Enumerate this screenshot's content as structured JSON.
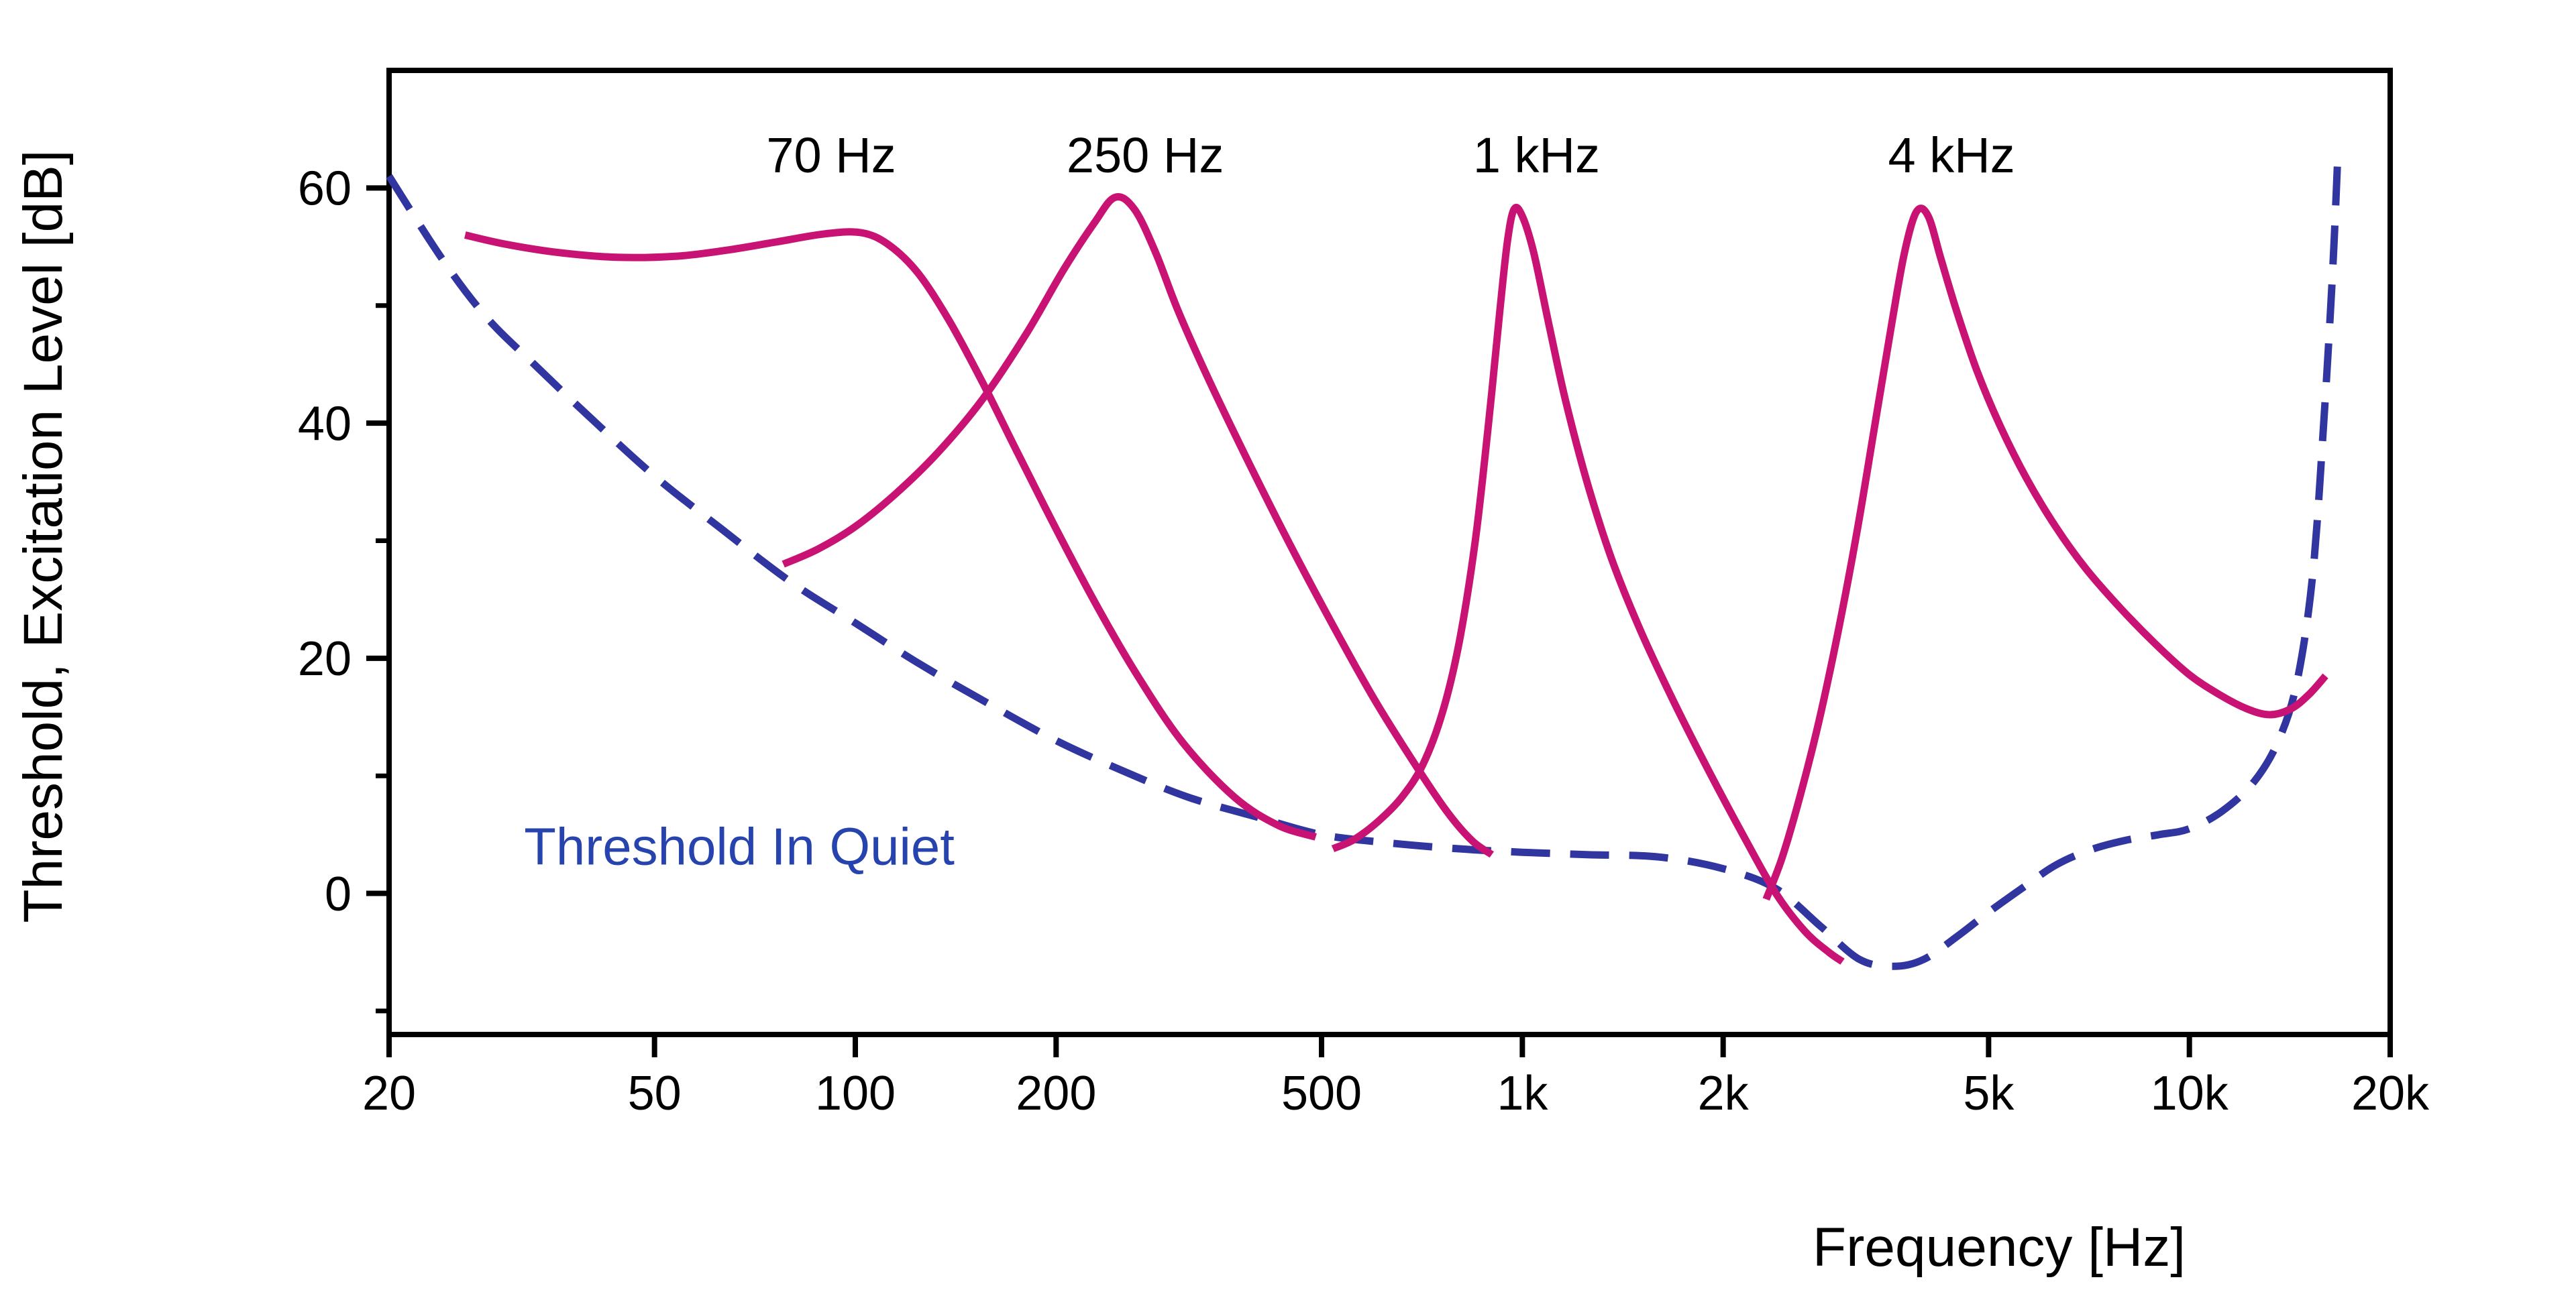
{
  "chart_data": {
    "type": "line",
    "title": "",
    "xlabel": "Frequency [Hz]",
    "ylabel": "Threshold, Excitation Level [dB]",
    "x_scale": "log10",
    "xlim": [
      20,
      20000
    ],
    "ylim": [
      -12,
      70
    ],
    "grid": false,
    "legend_position": "none",
    "x_ticks": [
      {
        "value": 20,
        "label": "20"
      },
      {
        "value": 50,
        "label": "50"
      },
      {
        "value": 100,
        "label": "100"
      },
      {
        "value": 200,
        "label": "200"
      },
      {
        "value": 500,
        "label": "500"
      },
      {
        "value": 1000,
        "label": "1k"
      },
      {
        "value": 2000,
        "label": "2k"
      },
      {
        "value": 5000,
        "label": "5k"
      },
      {
        "value": 10000,
        "label": "10k"
      },
      {
        "value": 20000,
        "label": "20k"
      }
    ],
    "y_ticks": [
      {
        "value": 0,
        "label": "0"
      },
      {
        "value": 20,
        "label": "20"
      },
      {
        "value": 40,
        "label": "40"
      },
      {
        "value": 60,
        "label": "60"
      }
    ],
    "y_minor_ticks": [
      -10,
      10,
      30,
      50
    ],
    "colors": {
      "excitation": "#C81374",
      "threshold": "#3035A0",
      "axis": "#000000",
      "text": "#000000"
    },
    "annotations": [
      {
        "id": "label-70hz",
        "text": "70 Hz",
        "x_hz": 92,
        "y_db": 62.8,
        "color": "#000000"
      },
      {
        "id": "label-250hz",
        "text": "250 Hz",
        "x_hz": 272,
        "y_db": 62.8,
        "color": "#000000"
      },
      {
        "id": "label-1khz",
        "text": "1 kHz",
        "x_hz": 1050,
        "y_db": 62.8,
        "color": "#000000"
      },
      {
        "id": "label-4khz",
        "text": "4 kHz",
        "x_hz": 4400,
        "y_db": 62.8,
        "color": "#000000"
      },
      {
        "id": "label-threshold-in-quiet",
        "text": "Threshold In Quiet",
        "x_hz": 67,
        "y_db": 4.0,
        "color": "#2743AE"
      }
    ],
    "series": [
      {
        "name": "threshold-in-quiet",
        "legend": "Threshold In Quiet",
        "style": "dashed",
        "color_key": "threshold",
        "points": [
          [
            20,
            61
          ],
          [
            24,
            54
          ],
          [
            28,
            49
          ],
          [
            33,
            45
          ],
          [
            40,
            40.5
          ],
          [
            50,
            35.5
          ],
          [
            63,
            31
          ],
          [
            80,
            26.5
          ],
          [
            100,
            23
          ],
          [
            125,
            19.5
          ],
          [
            160,
            16
          ],
          [
            200,
            13
          ],
          [
            250,
            10.5
          ],
          [
            315,
            8.2
          ],
          [
            400,
            6.5
          ],
          [
            500,
            5.0
          ],
          [
            630,
            4.3
          ],
          [
            800,
            3.8
          ],
          [
            1000,
            3.5
          ],
          [
            1250,
            3.3
          ],
          [
            1600,
            3.1
          ],
          [
            2000,
            2.1
          ],
          [
            2400,
            0.4
          ],
          [
            2800,
            -2.8
          ],
          [
            3200,
            -5.6
          ],
          [
            3600,
            -6.2
          ],
          [
            4000,
            -5.6
          ],
          [
            4500,
            -3.6
          ],
          [
            5000,
            -1.6
          ],
          [
            5600,
            0.4
          ],
          [
            6300,
            2.4
          ],
          [
            7100,
            3.7
          ],
          [
            8000,
            4.5
          ],
          [
            9000,
            5.0
          ],
          [
            10000,
            5.5
          ],
          [
            11200,
            7.0
          ],
          [
            12500,
            9.5
          ],
          [
            13600,
            13
          ],
          [
            14500,
            18
          ],
          [
            15300,
            27
          ],
          [
            15900,
            40
          ],
          [
            16400,
            53
          ],
          [
            16700,
            63
          ]
        ]
      },
      {
        "name": "masker-70hz",
        "legend": "70 Hz",
        "style": "solid",
        "color_key": "excitation",
        "points": [
          [
            26,
            56
          ],
          [
            30,
            55.2
          ],
          [
            36,
            54.5
          ],
          [
            44,
            54.1
          ],
          [
            54,
            54.2
          ],
          [
            64,
            54.7
          ],
          [
            76,
            55.4
          ],
          [
            90,
            56.1
          ],
          [
            102,
            56.2
          ],
          [
            112,
            55.2
          ],
          [
            124,
            52.8
          ],
          [
            138,
            48.8
          ],
          [
            155,
            43.5
          ],
          [
            175,
            37.5
          ],
          [
            200,
            31
          ],
          [
            230,
            24.5
          ],
          [
            265,
            18.5
          ],
          [
            310,
            12.8
          ],
          [
            370,
            8.2
          ],
          [
            430,
            5.8
          ],
          [
            490,
            4.8
          ]
        ]
      },
      {
        "name": "masker-250hz",
        "legend": "250 Hz",
        "style": "solid",
        "color_key": "excitation",
        "points": [
          [
            78,
            28
          ],
          [
            88,
            29.3
          ],
          [
            100,
            31.2
          ],
          [
            115,
            34
          ],
          [
            133,
            37.5
          ],
          [
            155,
            42
          ],
          [
            180,
            47.5
          ],
          [
            205,
            53
          ],
          [
            228,
            57
          ],
          [
            245,
            59.2
          ],
          [
            262,
            58.2
          ],
          [
            282,
            54.5
          ],
          [
            305,
            49.5
          ],
          [
            340,
            43.5
          ],
          [
            390,
            36.5
          ],
          [
            450,
            29.5
          ],
          [
            520,
            22.8
          ],
          [
            600,
            16.5
          ],
          [
            690,
            11
          ],
          [
            770,
            7
          ],
          [
            840,
            4.5
          ],
          [
            900,
            3.3
          ]
        ]
      },
      {
        "name": "masker-1khz",
        "legend": "1 kHz",
        "style": "solid",
        "color_key": "excitation",
        "points": [
          [
            520,
            3.8
          ],
          [
            560,
            4.6
          ],
          [
            610,
            6.2
          ],
          [
            660,
            8.2
          ],
          [
            710,
            11
          ],
          [
            760,
            15.5
          ],
          [
            805,
            21.5
          ],
          [
            850,
            30
          ],
          [
            890,
            40
          ],
          [
            925,
            49.5
          ],
          [
            950,
            55.5
          ],
          [
            972,
            58.2
          ],
          [
            1000,
            57.6
          ],
          [
            1040,
            54.5
          ],
          [
            1095,
            48.5
          ],
          [
            1160,
            42
          ],
          [
            1250,
            35
          ],
          [
            1360,
            28.5
          ],
          [
            1500,
            22.5
          ],
          [
            1680,
            16.5
          ],
          [
            1900,
            10.5
          ],
          [
            2150,
            4.8
          ],
          [
            2400,
            0
          ],
          [
            2650,
            -3.2
          ],
          [
            2880,
            -5
          ],
          [
            3020,
            -5.8
          ]
        ]
      },
      {
        "name": "masker-4khz",
        "legend": "4 kHz",
        "style": "solid",
        "color_key": "excitation",
        "points": [
          [
            2320,
            -0.5
          ],
          [
            2450,
            3
          ],
          [
            2600,
            8
          ],
          [
            2780,
            14.5
          ],
          [
            2980,
            22.5
          ],
          [
            3180,
            31
          ],
          [
            3380,
            40
          ],
          [
            3580,
            48.5
          ],
          [
            3740,
            54.5
          ],
          [
            3900,
            58
          ],
          [
            4060,
            57.6
          ],
          [
            4240,
            54
          ],
          [
            4480,
            49.5
          ],
          [
            4800,
            44.5
          ],
          [
            5200,
            39.8
          ],
          [
            5700,
            35.3
          ],
          [
            6300,
            31.2
          ],
          [
            7000,
            27.6
          ],
          [
            7900,
            24.2
          ],
          [
            8900,
            21.2
          ],
          [
            10000,
            18.6
          ],
          [
            11100,
            16.9
          ],
          [
            12200,
            15.7
          ],
          [
            13200,
            15.2
          ],
          [
            14200,
            15.7
          ],
          [
            15100,
            16.9
          ],
          [
            16000,
            18.5
          ]
        ]
      }
    ]
  }
}
